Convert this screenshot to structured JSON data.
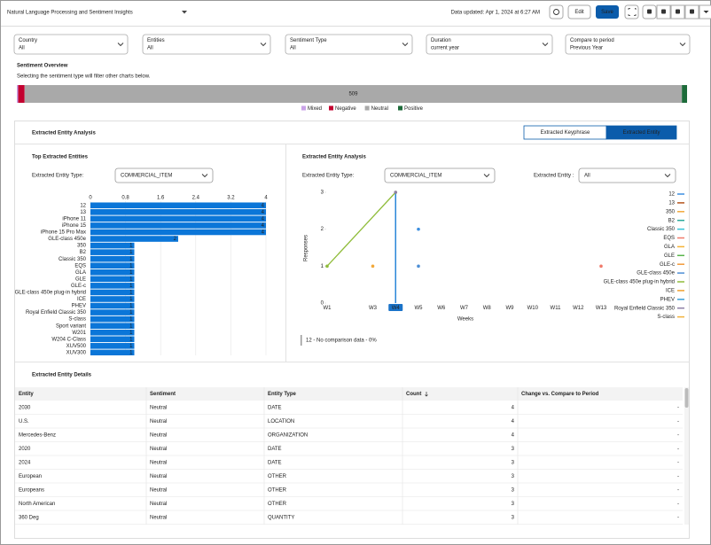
{
  "header": {
    "title": "Natural Language Processing and Sentiment Insights",
    "updated": "Data updated: Apr 1, 2024 at 6:27 AM",
    "buttons": [
      "Edit",
      "Save"
    ]
  },
  "filters": [
    {
      "label": "Country",
      "value": "All"
    },
    {
      "label": "Entities",
      "value": "All"
    },
    {
      "label": "Sentiment Type",
      "value": "All"
    },
    {
      "label": "Duration",
      "value": "current year"
    },
    {
      "label": "Compare to period",
      "value": "Previous Year"
    }
  ],
  "overview": {
    "title": "Sentiment Overview",
    "subtitle": "Selecting the sentiment type will filter other charts below.",
    "chart_data": {
      "type": "stacked-bar",
      "series": [
        {
          "name": "Mixed",
          "color": "#c9a2e8",
          "values": [
            1
          ]
        },
        {
          "name": "Negative",
          "color": "#c3002f",
          "values": [
            5
          ]
        },
        {
          "name": "Neutral",
          "color": "#a9a9a9",
          "values": [
            509
          ]
        },
        {
          "name": "Positive",
          "color": "#1d6b3a",
          "values": [
            4
          ]
        }
      ]
    }
  },
  "analysis": {
    "title": "Extracted Entity Analysis",
    "tabs": [
      "Extracted Keyphrase",
      "Extracted Entity"
    ],
    "active_tab": 1,
    "left": {
      "title": "Top Extracted Entities",
      "filter_label": "Extracted Entity Type:",
      "filter_value": "COMMERCIAL_ITEM",
      "chart_data": {
        "type": "hbar",
        "color": "#0b76d8",
        "xlim": [
          0,
          4
        ],
        "xticks": [
          0,
          0.8,
          1.6,
          2.4,
          3.2,
          4
        ],
        "grid": true,
        "categories": [
          "12",
          "13",
          "iPhone 11",
          "iPhone 15",
          "iPhone 15 Pro Max",
          "GLE-class 450e",
          "350",
          "B2",
          "Classic 350",
          "EQS",
          "GLA",
          "GLE",
          "GLE-c",
          "GLE-class 450e plug-in hybrid",
          "ICE",
          "PHEV",
          "Royal Enfield Classic 350",
          "S-class",
          "Sport variant",
          "W201",
          "W204 C-Class",
          "XUV500",
          "XUV300"
        ],
        "values": [
          4,
          4,
          4,
          4,
          4,
          2,
          1,
          1,
          1,
          1,
          1,
          1,
          1,
          1,
          1,
          1,
          1,
          1,
          1,
          1,
          1,
          1,
          1
        ]
      }
    },
    "right": {
      "title": "Extracted Entity Analysis",
      "filters": [
        {
          "label": "Extracted Entity Type:",
          "value": "COMMERCIAL_ITEM"
        },
        {
          "label": "Extracted Entity :",
          "value": "All"
        }
      ],
      "chart_data": {
        "type": "line",
        "x_label": "Weeks",
        "y_label": "Responses",
        "ylim": [
          0,
          3
        ],
        "yticks": [
          0,
          1,
          2,
          3
        ],
        "connect_gaps": true,
        "categories": [
          "W1",
          null,
          "W3",
          "W4",
          "W5",
          "W6",
          "W7",
          "W8",
          "W9",
          "W10",
          "W11",
          "W12",
          "W13"
        ],
        "series": [
          {
            "name": "12",
            "color": "#3d8fe0",
            "values": [
              null,
              null,
              null,
              null,
              2,
              null,
              null,
              null,
              null,
              null,
              null,
              null,
              null
            ]
          },
          {
            "name": "13",
            "color": "#b5541c",
            "values": [
              null,
              null,
              null,
              null,
              null,
              null,
              null,
              null,
              null,
              null,
              null,
              null,
              null
            ]
          },
          {
            "name": "350",
            "color": "#f2a93b",
            "values": [
              null,
              null,
              1,
              null,
              null,
              null,
              null,
              null,
              null,
              null,
              null,
              null,
              null
            ]
          },
          {
            "name": "B2",
            "color": "#2ba89a",
            "values": [
              null,
              null,
              null,
              null,
              null,
              null,
              null,
              null,
              null,
              null,
              null,
              null,
              null
            ]
          },
          {
            "name": "Classic 350",
            "color": "#35c4d8",
            "values": [
              null,
              null,
              null,
              null,
              null,
              null,
              null,
              null,
              null,
              null,
              null,
              null,
              null
            ]
          },
          {
            "name": "EQS",
            "color": "#f07a6a",
            "values": [
              null,
              null,
              null,
              null,
              null,
              null,
              null,
              null,
              null,
              null,
              null,
              null,
              1
            ]
          },
          {
            "name": "GLA",
            "color": "#f5b335",
            "values": [
              null,
              null,
              null,
              null,
              null,
              null,
              null,
              null,
              null,
              null,
              null,
              null,
              null
            ]
          },
          {
            "name": "GLE",
            "color": "#58b44a",
            "values": [
              null,
              null,
              null,
              null,
              null,
              null,
              null,
              null,
              null,
              null,
              null,
              null,
              null
            ]
          },
          {
            "name": "GLE-c",
            "color": "#f29a3a",
            "values": [
              null,
              null,
              null,
              null,
              null,
              null,
              null,
              null,
              null,
              null,
              null,
              null,
              null
            ]
          },
          {
            "name": "GLE-class 450e",
            "color": "#4d8fd6",
            "values": [
              null,
              null,
              null,
              null,
              1,
              null,
              null,
              null,
              null,
              null,
              null,
              null,
              null
            ]
          },
          {
            "name": "GLE-class 450e plug-in hybrid",
            "color": "#8fbc3a",
            "values": [
              1,
              null,
              null,
              3,
              null,
              null,
              null,
              null,
              null,
              null,
              null,
              null,
              null
            ]
          },
          {
            "name": "ICE",
            "color": "#f0a030",
            "values": [
              null,
              null,
              null,
              null,
              null,
              null,
              null,
              null,
              null,
              null,
              null,
              null,
              null
            ]
          },
          {
            "name": "PHEV",
            "color": "#3aa0d8",
            "values": [
              null,
              null,
              null,
              null,
              null,
              null,
              null,
              null,
              null,
              null,
              null,
              null,
              null
            ]
          },
          {
            "name": "Royal Enfield Classic 350",
            "color": "#8e7fa6",
            "values": [
              null,
              null,
              null,
              3,
              null,
              null,
              null,
              null,
              null,
              null,
              null,
              null,
              null
            ]
          },
          {
            "name": "S-class",
            "color": "#f2b13c",
            "values": [
              null,
              null,
              null,
              null,
              null,
              null,
              null,
              null,
              null,
              null,
              null,
              null,
              null
            ]
          }
        ]
      },
      "note": "12 - No comparison data - 0%"
    }
  },
  "details": {
    "title": "Extracted Entity Details",
    "columns": [
      "Entity",
      "Sentiment",
      "Entity Type",
      "Count",
      "Change vs. Compare to Period"
    ],
    "rows": [
      [
        "2030",
        "Neutral",
        "DATE",
        4,
        "-"
      ],
      [
        "U.S.",
        "Neutral",
        "LOCATION",
        4,
        "-"
      ],
      [
        "Mercedes-Benz",
        "Neutral",
        "ORGANIZATION",
        4,
        "-"
      ],
      [
        "2020",
        "Neutral",
        "DATE",
        3,
        "-"
      ],
      [
        "2024",
        "Neutral",
        "DATE",
        3,
        "-"
      ],
      [
        "European",
        "Neutral",
        "OTHER",
        3,
        "-"
      ],
      [
        "Europeans",
        "Neutral",
        "OTHER",
        3,
        "-"
      ],
      [
        "North American",
        "Neutral",
        "OTHER",
        3,
        "-"
      ],
      [
        "360 Deg",
        "Neutral",
        "QUANTITY",
        3,
        "-"
      ]
    ]
  }
}
